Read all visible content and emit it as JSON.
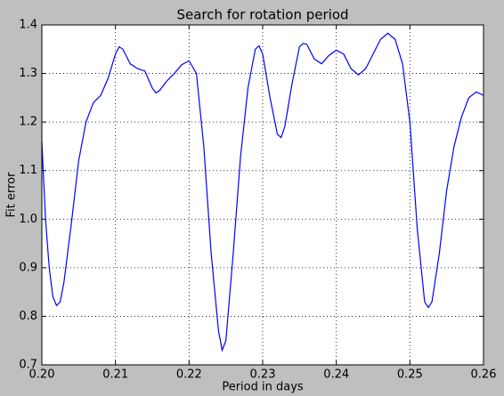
{
  "chart_data": {
    "type": "line",
    "title": "Search for rotation period",
    "xlabel": "Period in days",
    "ylabel": "Fit error",
    "x": [
      0.2,
      0.2005,
      0.201,
      0.2015,
      0.202,
      0.2025,
      0.203,
      0.204,
      0.205,
      0.206,
      0.207,
      0.208,
      0.209,
      0.21,
      0.2105,
      0.211,
      0.212,
      0.213,
      0.214,
      0.215,
      0.2155,
      0.216,
      0.217,
      0.218,
      0.219,
      0.22,
      0.221,
      0.222,
      0.223,
      0.224,
      0.2245,
      0.225,
      0.226,
      0.227,
      0.228,
      0.229,
      0.2295,
      0.23,
      0.231,
      0.232,
      0.2325,
      0.233,
      0.234,
      0.235,
      0.2355,
      0.236,
      0.237,
      0.238,
      0.239,
      0.24,
      0.241,
      0.242,
      0.243,
      0.244,
      0.245,
      0.246,
      0.247,
      0.248,
      0.249,
      0.25,
      0.251,
      0.252,
      0.2525,
      0.253,
      0.254,
      0.255,
      0.256,
      0.257,
      0.258,
      0.259,
      0.26
    ],
    "series": [
      {
        "color": "#0000ff",
        "values": [
          1.16,
          1.0,
          0.9,
          0.84,
          0.822,
          0.83,
          0.87,
          0.99,
          1.12,
          1.2,
          1.24,
          1.255,
          1.29,
          1.34,
          1.355,
          1.35,
          1.32,
          1.31,
          1.305,
          1.27,
          1.26,
          1.265,
          1.285,
          1.3,
          1.318,
          1.326,
          1.3,
          1.15,
          0.93,
          0.77,
          0.73,
          0.75,
          0.93,
          1.13,
          1.27,
          1.35,
          1.357,
          1.34,
          1.25,
          1.175,
          1.168,
          1.19,
          1.28,
          1.355,
          1.362,
          1.36,
          1.33,
          1.32,
          1.337,
          1.348,
          1.34,
          1.31,
          1.297,
          1.31,
          1.34,
          1.37,
          1.383,
          1.37,
          1.32,
          1.2,
          0.98,
          0.83,
          0.818,
          0.83,
          0.93,
          1.06,
          1.15,
          1.21,
          1.25,
          1.262,
          1.255
        ]
      }
    ],
    "xlim": [
      0.2,
      0.26
    ],
    "ylim": [
      0.7,
      1.4
    ],
    "xticks": [
      {
        "value": 0.2,
        "label": "0.20"
      },
      0.21,
      0.22,
      0.23,
      0.24,
      0.25,
      0.26
    ],
    "yticks": [
      0.7,
      0.8,
      0.9,
      {
        "value": 1.0,
        "label": "1.0"
      },
      1.1,
      1.2,
      1.3,
      1.4
    ],
    "grid": true
  }
}
